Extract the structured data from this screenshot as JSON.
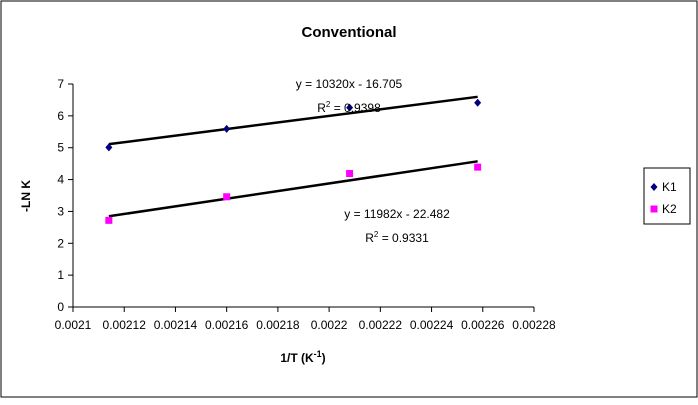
{
  "chart_data": {
    "type": "scatter",
    "title": "Conventional",
    "xlabel": "1/T (K",
    "xlabel_sup": "-1",
    "xlabel_end": ")",
    "ylabel": "-LN K",
    "xlim": [
      0.0021,
      0.00228
    ],
    "ylim": [
      0,
      7
    ],
    "x_ticks": [
      "0.0021",
      "0.00212",
      "0.00214",
      "0.00216",
      "0.00218",
      "0.0022",
      "0.00222",
      "0.00224",
      "0.00226",
      "0.00228"
    ],
    "y_ticks": [
      "0",
      "1",
      "2",
      "3",
      "4",
      "5",
      "6",
      "7"
    ],
    "grid": false,
    "legend_position": "right",
    "series": [
      {
        "name": "K1",
        "color": "#000080",
        "marker": "diamond",
        "x": [
          0.002114,
          0.00216,
          0.002208,
          0.002258
        ],
        "y": [
          5.01,
          5.59,
          6.26,
          6.41
        ],
        "trendline": {
          "slope": 10320,
          "intercept": -16.705,
          "equation": "y = 10320x - 16.705",
          "r2_label": "R",
          "r2_value": " = 0.9398"
        }
      },
      {
        "name": "K2",
        "color": "#FF00FF",
        "marker": "square",
        "x": [
          0.002114,
          0.00216,
          0.002208,
          0.002258
        ],
        "y": [
          2.72,
          3.46,
          4.19,
          4.39
        ],
        "trendline": {
          "slope": 11982,
          "intercept": -22.482,
          "equation": "y = 11982x - 22.482",
          "r2_label": "R",
          "r2_value": " = 0.9331"
        }
      }
    ]
  }
}
